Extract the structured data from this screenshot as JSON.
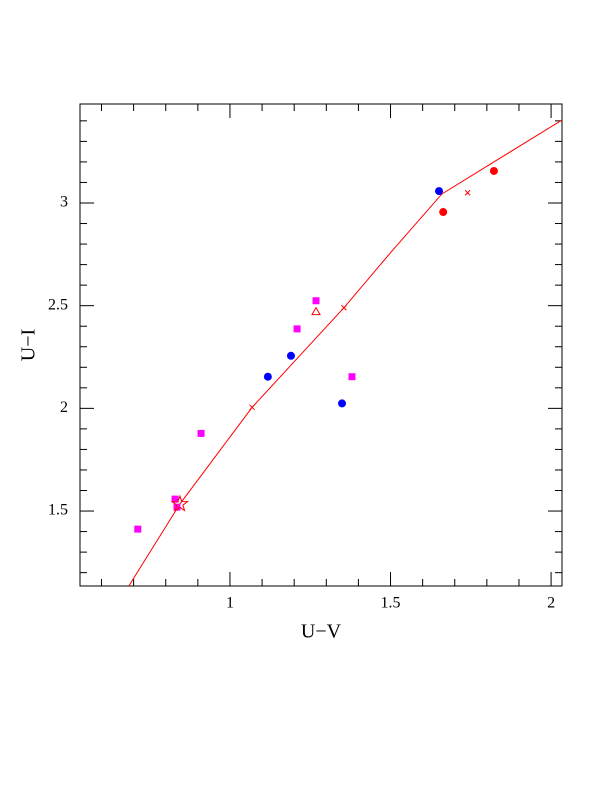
{
  "chart_data": {
    "type": "scatter",
    "x_label": "U−V",
    "y_label": "U−I",
    "xlim": [
      0.533,
      2.034
    ],
    "ylim": [
      1.135,
      3.482
    ],
    "xticks": [
      1,
      1.5,
      2
    ],
    "yticks": [
      1.5,
      2,
      2.5,
      3
    ],
    "xminorticks": [
      0.6,
      0.7,
      0.8,
      0.9,
      1.1,
      1.2,
      1.3,
      1.4,
      1.6,
      1.7,
      1.8,
      1.9
    ],
    "yminorticks": [
      1.2,
      1.3,
      1.4,
      1.6,
      1.7,
      1.8,
      1.9,
      2.1,
      2.2,
      2.3,
      2.4,
      2.6,
      2.7,
      2.8,
      2.9,
      3.1,
      3.2,
      3.3,
      3.4
    ],
    "series": [
      {
        "type": "line",
        "color": "#ff0000",
        "x": [
          0.685,
          0.844,
          1.069,
          1.355,
          1.5,
          1.66,
          2.034
        ],
        "values": [
          1.135,
          1.534,
          2.005,
          2.49,
          2.758,
          3.044,
          3.404
        ]
      },
      {
        "marker": "x",
        "color": "#ff0000",
        "filled": false,
        "x": [
          1.069,
          1.355,
          1.74
        ],
        "values": [
          2.005,
          2.49,
          3.05
        ]
      },
      {
        "marker": "circle",
        "color": "#0000ff",
        "filled": true,
        "x": [
          1.651,
          1.19,
          1.118,
          1.349
        ],
        "values": [
          3.058,
          2.256,
          2.154,
          2.024
        ]
      },
      {
        "marker": "circle",
        "color": "#ff0000",
        "filled": true,
        "x": [
          1.822,
          1.664
        ],
        "values": [
          3.156,
          2.956
        ]
      },
      {
        "marker": "square",
        "color": "#ff00ff",
        "filled": true,
        "x": [
          0.713,
          0.829,
          0.835,
          0.91,
          1.209,
          1.268,
          1.38
        ],
        "values": [
          1.412,
          1.558,
          1.519,
          1.878,
          2.387,
          2.524,
          2.154
        ]
      },
      {
        "marker": "triangle",
        "color": "#ff0000",
        "filled": false,
        "x": [
          1.268
        ],
        "values": [
          2.471
        ]
      },
      {
        "marker": "star",
        "color": "#ff0000",
        "filled": false,
        "x": [
          0.844
        ],
        "values": [
          1.534
        ]
      }
    ]
  }
}
